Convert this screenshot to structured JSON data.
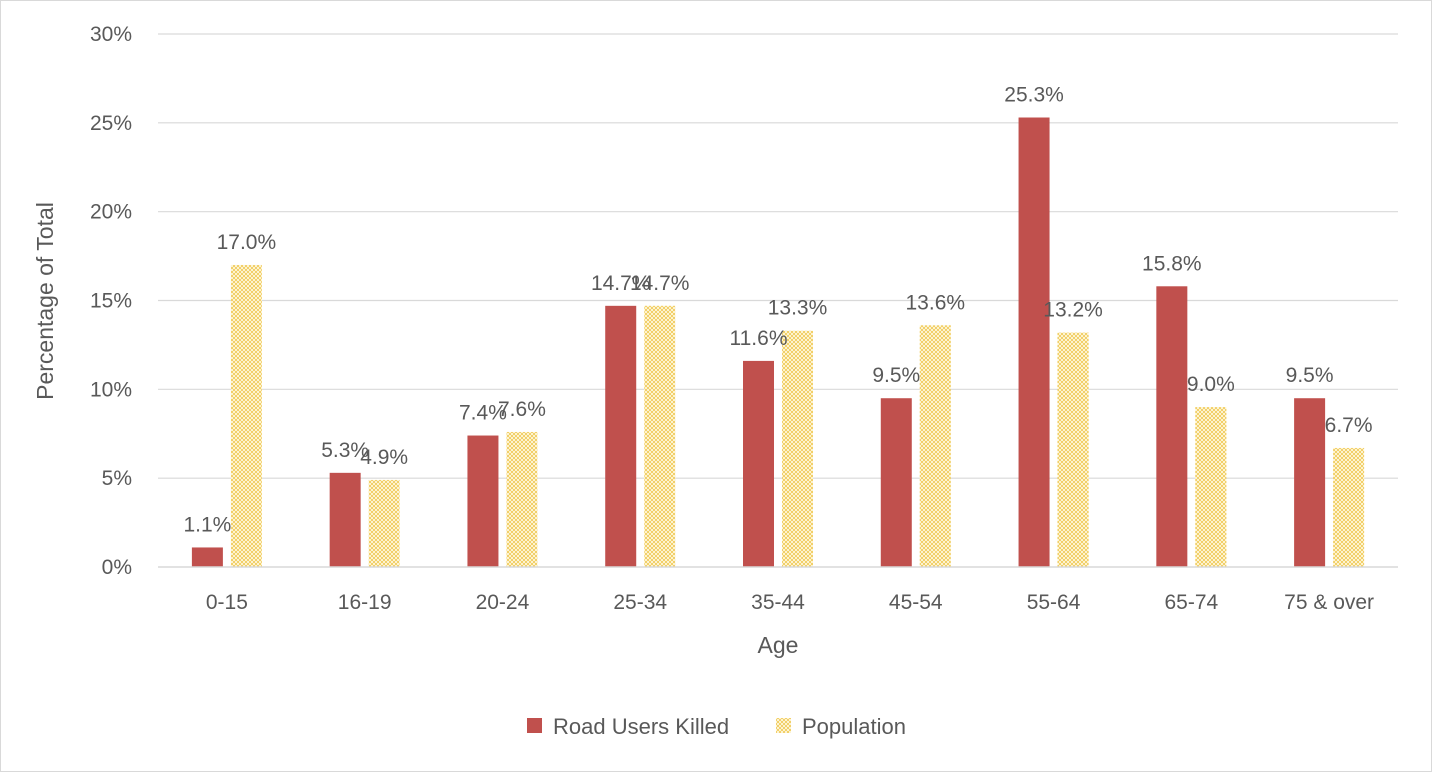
{
  "chart_data": {
    "type": "bar",
    "title": "",
    "xlabel": "Age",
    "ylabel": "Percentage of Total",
    "categories": [
      "0-15",
      "16-19",
      "20-24",
      "25-34",
      "35-44",
      "45-54",
      "55-64",
      "65-74",
      "75 & over"
    ],
    "series": [
      {
        "name": "Road Users Killed",
        "values": [
          1.1,
          5.3,
          7.4,
          14.7,
          11.6,
          9.5,
          25.3,
          15.8,
          9.5
        ],
        "labels": [
          "1.1%",
          "5.3%",
          "7.4%",
          "14.7%",
          "11.6%",
          "9.5%",
          "25.3%",
          "15.8%",
          "9.5%"
        ],
        "color": "#c0504d",
        "pattern": "solid"
      },
      {
        "name": "Population",
        "values": [
          17.0,
          4.9,
          7.6,
          14.7,
          13.3,
          13.6,
          13.2,
          9.0,
          6.7
        ],
        "labels": [
          "17.0%",
          "4.9%",
          "7.6%",
          "14.7%",
          "13.3%",
          "13.6%",
          "13.2%",
          "9.0%",
          "6.7%"
        ],
        "color": "#f2c12e",
        "pattern": "dotted"
      }
    ],
    "ylim": [
      0,
      30
    ],
    "yticks": [
      0,
      5,
      10,
      15,
      20,
      25,
      30
    ],
    "ytick_labels": [
      "0%",
      "5%",
      "10%",
      "15%",
      "20%",
      "25%",
      "30%"
    ],
    "grid": true,
    "legend_position": "bottom"
  }
}
